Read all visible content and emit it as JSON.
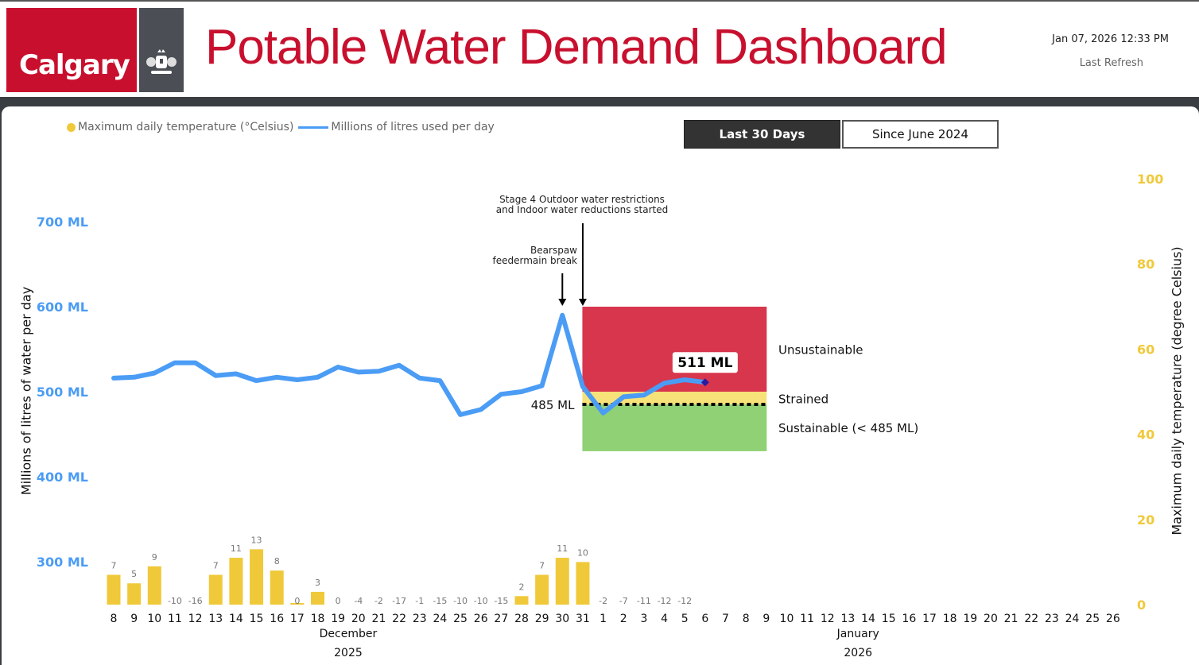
{
  "header": {
    "logo_text": "Calgary",
    "title": "Potable Water Demand Dashboard",
    "refresh_datetime": "Jan 07, 2026 12:33 PM",
    "refresh_label": "Last Refresh"
  },
  "legend": {
    "temperature_label": "Maximum daily temperature (°Celsius)",
    "water_label": "Millions of litres used per day"
  },
  "buttons": {
    "last_30_days": "Last 30 Days",
    "since_june_2024": "Since June 2024"
  },
  "colors": {
    "brand_red": "#c8102e",
    "water_line": "#4b9cf5",
    "temperature_bar": "#f0c93a",
    "unsustainable": "#d7364d",
    "strained": "#f7e27a",
    "sustainable": "#8fd174"
  },
  "chart_data": {
    "type": "line",
    "title": "Potable Water Demand Dashboard",
    "xlabel": "",
    "ylabel": "Millions of litres of water per day",
    "y2label": "Maximum daily temperature (degree Celsius)",
    "ylim": [
      300,
      700
    ],
    "y2lim": [
      0,
      100
    ],
    "y_ticks": [
      "700 ML",
      "600 ML",
      "500 ML",
      "400 ML",
      "300 ML"
    ],
    "y_tick_values": [
      700,
      600,
      500,
      400,
      300
    ],
    "y2_ticks": [
      "100",
      "80",
      "60",
      "40",
      "20",
      "0"
    ],
    "y2_tick_values": [
      100,
      80,
      60,
      40,
      20,
      0
    ],
    "grid": false,
    "legend_position": "top-left",
    "x": [
      "8",
      "9",
      "10",
      "11",
      "12",
      "13",
      "14",
      "15",
      "16",
      "17",
      "18",
      "19",
      "20",
      "21",
      "22",
      "23",
      "24",
      "25",
      "26",
      "27",
      "28",
      "29",
      "30",
      "31",
      "1",
      "2",
      "3",
      "4",
      "5",
      "6",
      "7",
      "8",
      "9",
      "10",
      "11",
      "12",
      "13",
      "14",
      "15",
      "16",
      "17",
      "18",
      "19",
      "20",
      "21",
      "22",
      "23",
      "24",
      "25",
      "26"
    ],
    "month_labels": [
      {
        "label": "December",
        "year": "2025",
        "center_index": 11.5
      },
      {
        "label": "January",
        "year": "2026",
        "center_index": 36.5
      }
    ],
    "series": [
      {
        "name": "Millions of litres used per day",
        "type": "line",
        "axis": "left",
        "values": [
          516,
          517,
          522,
          534,
          534,
          519,
          521,
          513,
          517,
          514,
          517,
          529,
          523,
          524,
          531,
          516,
          513,
          473,
          479,
          497,
          500,
          507,
          590,
          506,
          475,
          494,
          496,
          510,
          514,
          511
        ]
      },
      {
        "name": "Maximum daily temperature (°Celsius)",
        "type": "bar",
        "axis": "right",
        "values": [
          7,
          5,
          9,
          -10,
          -16,
          7,
          11,
          13,
          8,
          0,
          3,
          0,
          -4,
          -2,
          -17,
          -1,
          -15,
          -10,
          -10,
          -15,
          2,
          7,
          11,
          10,
          -2,
          -7,
          -11,
          -12,
          -12
        ]
      }
    ],
    "zones": [
      {
        "label": "Unsustainable",
        "from": 500,
        "to": 600
      },
      {
        "label": "Strained",
        "from": 485,
        "to": 500
      },
      {
        "label": "Sustainable (< 485 ML)",
        "from": 430,
        "to": 485
      }
    ],
    "zone_start_index": 23,
    "zone_end_index": 32,
    "threshold": {
      "value": 485,
      "label": "485 ML"
    },
    "latest_value_label": "511 ML",
    "annotations": [
      {
        "text_line1": "Bearspaw",
        "text_line2": "feedermain break",
        "index": 22
      },
      {
        "text_line1": "Stage 4 Outdoor water restrictions",
        "text_line2": "and Indoor water reductions started",
        "index": 23
      }
    ]
  }
}
